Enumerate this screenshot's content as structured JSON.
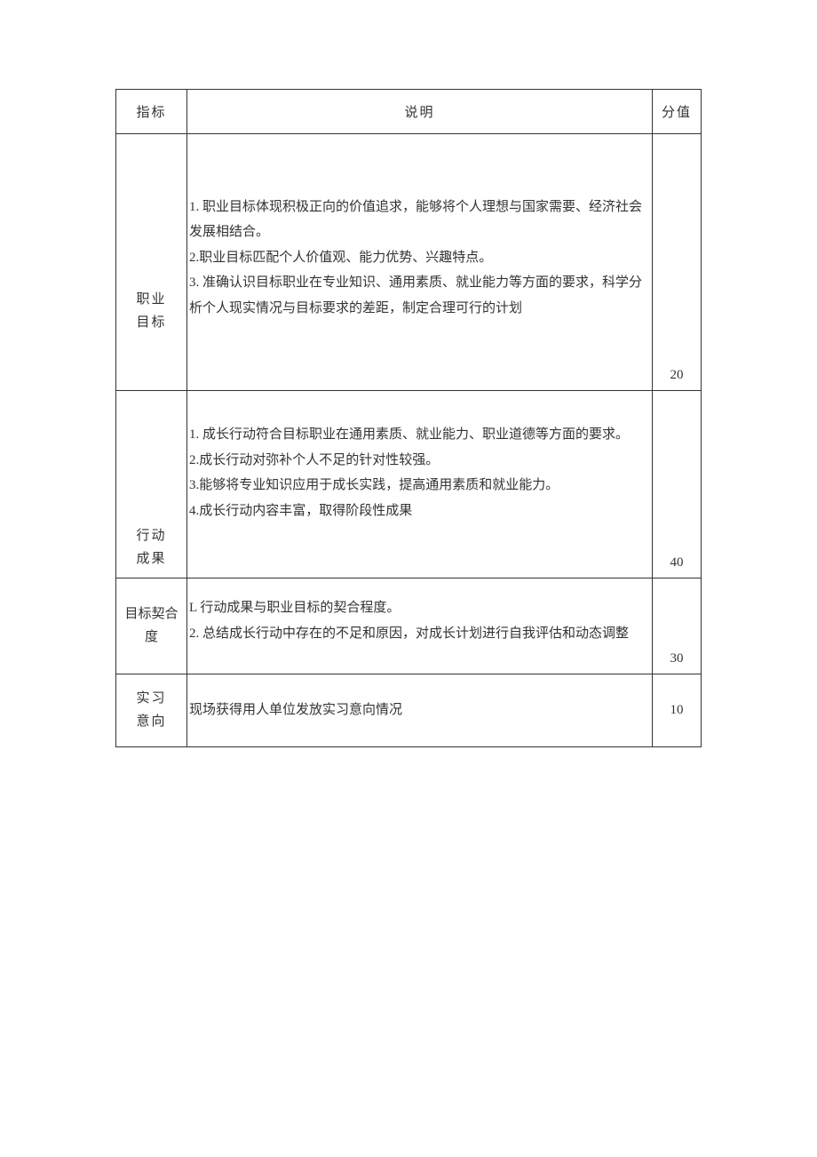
{
  "table": {
    "headers": {
      "indicator": "指标",
      "description": "说明",
      "score": "分值"
    },
    "rows": [
      {
        "indicator_line1": "职业",
        "indicator_line2": "目标",
        "description": "1. 职业目标体现积极正向的价值追求，能够将个人理想与国家需要、经济社会发展相结合。\n2.职业目标匹配个人价值观、能力优势、兴趣特点。\n3. 准确认识目标职业在专业知识、通用素质、就业能力等方面的要求，科学分析个人现实情况与目标要求的差距，制定合理可行的计划",
        "score": "20"
      },
      {
        "indicator_line1": "行动",
        "indicator_line2": "成果",
        "description": "1. 成长行动符合目标职业在通用素质、就业能力、职业道德等方面的要求。\n2.成长行动对弥补个人不足的针对性较强。\n3.能够将专业知识应用于成长实践，提高通用素质和就业能力。\n4.成长行动内容丰富，取得阶段性成果",
        "score": "40"
      },
      {
        "indicator_line1": "目标契合",
        "indicator_line2": "度",
        "description": "L 行动成果与职业目标的契合程度。\n2. 总结成长行动中存在的不足和原因，对成长计划进行自我评估和动态调整",
        "score": "30"
      },
      {
        "indicator_line1": "实习",
        "indicator_line2": "意向",
        "description": "现场获得用人单位发放实习意向情况",
        "score": "10"
      }
    ],
    "colors": {
      "border": "#333333",
      "text": "#333333",
      "background": "#ffffff"
    },
    "font_size": 15,
    "column_widths": {
      "indicator": 80,
      "score": 55
    }
  }
}
